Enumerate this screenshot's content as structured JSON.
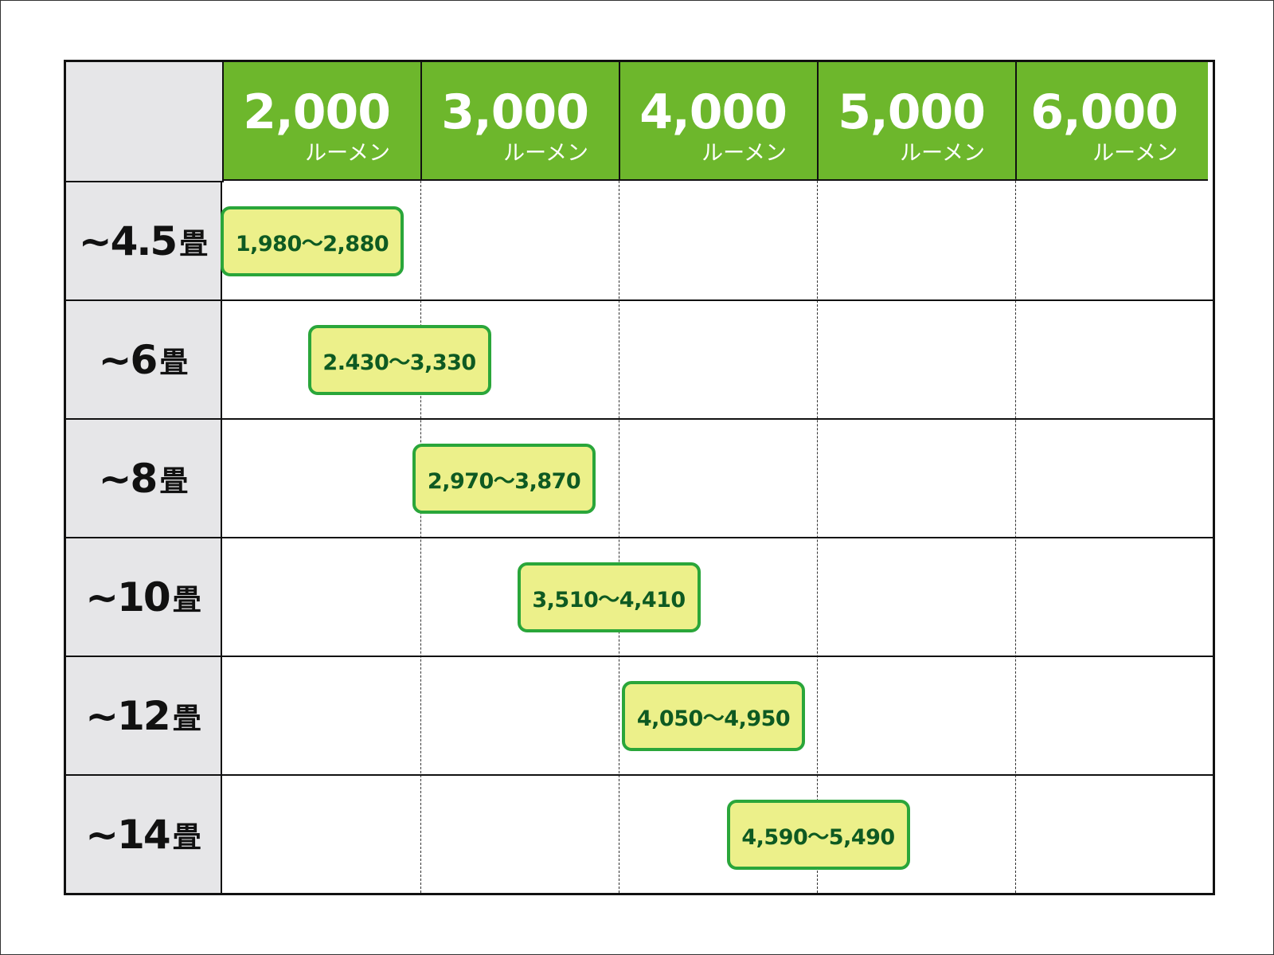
{
  "columns": [
    {
      "value": "2,000",
      "unit": "ルーメン"
    },
    {
      "value": "3,000",
      "unit": "ルーメン"
    },
    {
      "value": "4,000",
      "unit": "ルーメン"
    },
    {
      "value": "5,000",
      "unit": "ルーメン"
    },
    {
      "value": "6,000",
      "unit": "ルーメン"
    }
  ],
  "rows": [
    {
      "size": "~4.5",
      "unit": "畳",
      "range": "1,980〜2,880",
      "min": 1980,
      "max": 2880
    },
    {
      "size": "~6",
      "unit": "畳",
      "range": "2.430〜3,330",
      "min": 2430,
      "max": 3330
    },
    {
      "size": "~8",
      "unit": "畳",
      "range": "2,970〜3,870",
      "min": 2970,
      "max": 3870
    },
    {
      "size": "~10",
      "unit": "畳",
      "range": "3,510〜4,410",
      "min": 3510,
      "max": 4410
    },
    {
      "size": "~12",
      "unit": "畳",
      "range": "4,050〜4,950",
      "min": 4050,
      "max": 4950
    },
    {
      "size": "~14",
      "unit": "畳",
      "range": "4,590〜5,490",
      "min": 4590,
      "max": 5490
    }
  ],
  "colors": {
    "header": "#6db72c",
    "label_bg": "#e6e6e8",
    "box_bg": "#ecf08a",
    "box_border": "#2aa63a",
    "box_text": "#0e5a22"
  }
}
